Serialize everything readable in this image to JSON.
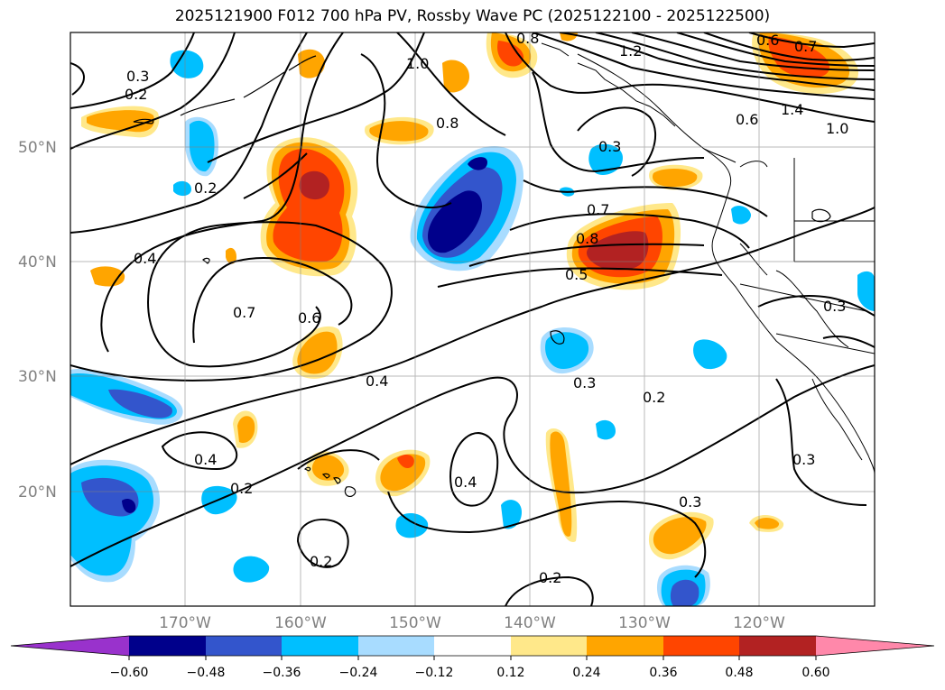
{
  "title": "2025121900 F012 700 hPa PV, Rossby Wave PC (2025122100 - 2025122500)",
  "map": {
    "lat_labels": [
      "50°N",
      "40°N",
      "30°N",
      "20°N"
    ],
    "lon_labels": [
      "170°W",
      "160°W",
      "150°W",
      "140°W",
      "130°W",
      "120°W"
    ],
    "contour_labels": [
      "0.3",
      "0.2",
      "1.0",
      "1.2",
      "0.8",
      "0.6",
      "0.7",
      "0.8",
      "0.6",
      "1.4",
      "1.0",
      "0.3",
      "0.2",
      "0.4",
      "0.7",
      "0.6",
      "0.8",
      "0.5",
      "0.7",
      "0.4",
      "0.3",
      "0.2",
      "0.3",
      "0.4",
      "0.2",
      "0.4",
      "0.3",
      "0.2",
      "0.2",
      "0.3"
    ],
    "colors": {
      "dark_blue": "#00008b",
      "mid_blue": "#3355cc",
      "light_blue": "#00bfff",
      "pale_blue": "#a8dcff",
      "pale_yellow": "#ffe88a",
      "orange": "#ffa500",
      "red_orange": "#ff4500",
      "dark_red": "#b22222"
    }
  },
  "colorbar": {
    "ticks": [
      "−0.60",
      "−0.48",
      "−0.36",
      "−0.24",
      "−0.12",
      "0.12",
      "0.24",
      "0.36",
      "0.48",
      "0.60"
    ],
    "colors": [
      "#9932cc",
      "#00008b",
      "#3355cc",
      "#00bfff",
      "#a8dcff",
      "#ffffff",
      "#ffe88a",
      "#ffa500",
      "#ff4500",
      "#b22222",
      "#ff88aa"
    ]
  }
}
